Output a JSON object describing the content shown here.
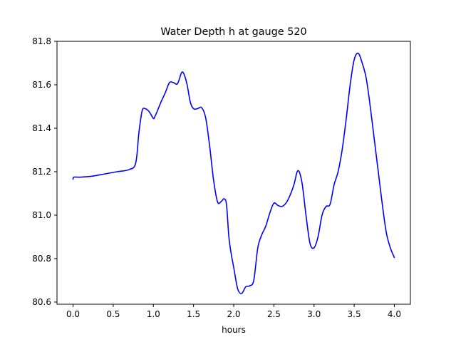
{
  "chart_data": {
    "type": "line",
    "title": "Water Depth h at gauge 520",
    "xlabel": "hours",
    "ylabel": "",
    "xlim": [
      -0.2,
      4.2
    ],
    "ylim": [
      80.59,
      81.8
    ],
    "xticks": [
      0.0,
      0.5,
      1.0,
      1.5,
      2.0,
      2.5,
      3.0,
      3.5,
      4.0
    ],
    "xtick_labels": [
      "0.0",
      "0.5",
      "1.0",
      "1.5",
      "2.0",
      "2.5",
      "3.0",
      "3.5",
      "4.0"
    ],
    "yticks": [
      80.6,
      80.8,
      81.0,
      81.2,
      81.4,
      81.6,
      81.8
    ],
    "ytick_labels": [
      "80.6",
      "80.8",
      "81.0",
      "81.2",
      "81.4",
      "81.6",
      "81.8"
    ],
    "grid": false,
    "legend": "none",
    "series": [
      {
        "color": "#0000ff",
        "x": [
          0.0,
          0.01,
          0.1,
          0.25,
          0.4,
          0.55,
          0.7,
          0.78,
          0.82,
          0.86,
          0.9,
          0.95,
          1.0,
          1.02,
          1.05,
          1.1,
          1.15,
          1.2,
          1.25,
          1.3,
          1.35,
          1.38,
          1.42,
          1.46,
          1.5,
          1.55,
          1.6,
          1.65,
          1.7,
          1.75,
          1.8,
          1.85,
          1.88,
          1.91,
          1.94,
          1.97,
          2.0,
          2.05,
          2.1,
          2.15,
          2.2,
          2.25,
          2.3,
          2.35,
          2.4,
          2.45,
          2.5,
          2.55,
          2.6,
          2.65,
          2.7,
          2.75,
          2.8,
          2.85,
          2.9,
          2.95,
          3.0,
          3.05,
          3.1,
          3.15,
          3.2,
          3.25,
          3.3,
          3.35,
          3.4,
          3.45,
          3.5,
          3.55,
          3.6,
          3.65,
          3.7,
          3.75,
          3.8,
          3.85,
          3.9,
          3.95,
          4.0
        ],
        "y": [
          81.165,
          81.175,
          81.175,
          81.18,
          81.19,
          81.2,
          81.21,
          81.24,
          81.38,
          81.48,
          81.49,
          81.475,
          81.445,
          81.455,
          81.48,
          81.525,
          81.565,
          81.61,
          81.61,
          81.605,
          81.655,
          81.65,
          81.6,
          81.52,
          81.49,
          81.49,
          81.495,
          81.45,
          81.32,
          81.16,
          81.06,
          81.065,
          81.075,
          81.05,
          80.9,
          80.82,
          80.76,
          80.66,
          80.64,
          80.67,
          80.675,
          80.7,
          80.85,
          80.91,
          80.95,
          81.01,
          81.055,
          81.045,
          81.04,
          81.055,
          81.09,
          81.14,
          81.205,
          81.15,
          81.0,
          80.87,
          80.85,
          80.9,
          81.0,
          81.04,
          81.05,
          81.14,
          81.2,
          81.3,
          81.44,
          81.6,
          81.715,
          81.745,
          81.7,
          81.63,
          81.5,
          81.35,
          81.2,
          81.05,
          80.92,
          80.85,
          80.805
        ]
      }
    ]
  }
}
